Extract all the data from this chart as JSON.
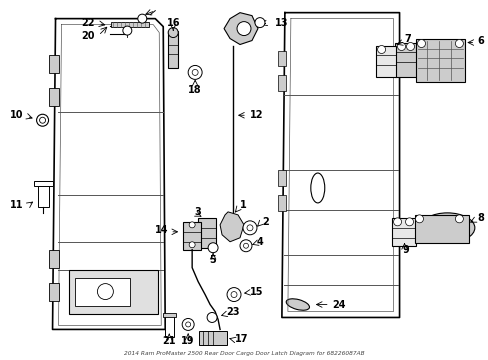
{
  "title": "2014 Ram ProMaster 2500 Rear Door Cargo Door Latch Diagram for 68226087AB",
  "bg_color": "#ffffff",
  "fig_width": 4.89,
  "fig_height": 3.6,
  "dpi": 100
}
